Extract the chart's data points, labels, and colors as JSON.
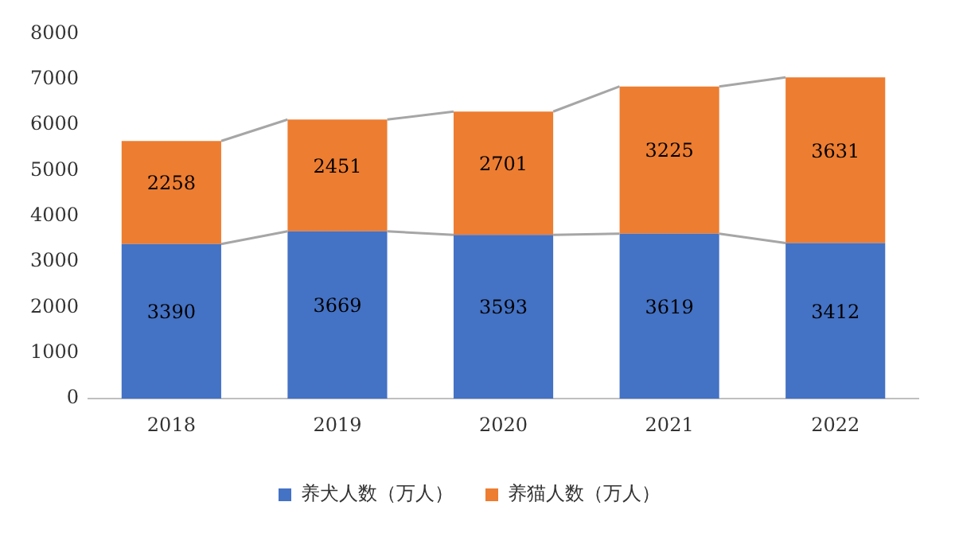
{
  "chart_data": {
    "type": "bar",
    "stacked": true,
    "categories": [
      "2018",
      "2019",
      "2020",
      "2021",
      "2022"
    ],
    "series": [
      {
        "name": "养犬人数（万人）",
        "color": "#4472c4",
        "values": [
          3390,
          3669,
          3593,
          3619,
          3412
        ]
      },
      {
        "name": "养猫人数（万人）",
        "color": "#ed7d31",
        "values": [
          2258,
          2451,
          2701,
          3225,
          3631
        ]
      }
    ],
    "ylim": [
      0,
      8000
    ],
    "yticks": [
      0,
      1000,
      2000,
      3000,
      4000,
      5000,
      6000,
      7000,
      8000
    ],
    "grid": false,
    "legend": "bottom",
    "data_labels": true
  }
}
